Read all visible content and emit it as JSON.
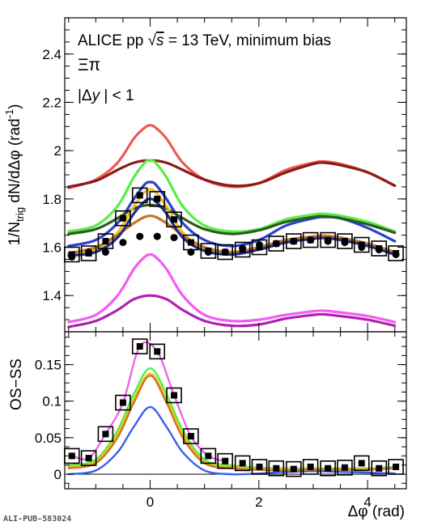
{
  "figure_label": "ALI-PUB-583024",
  "chart_data": [
    {
      "type": "line",
      "panel": "top",
      "ylabel_main": "1/N",
      "ylabel_sub": "trig",
      "ylabel_rest": " dN/dΔφ (rad",
      "ylabel_sup": "-1",
      "ylabel_close": ")",
      "xlim": [
        -1.5708,
        4.7124
      ],
      "ylim": [
        1.25,
        2.55
      ],
      "yticks": [
        1.4,
        1.6,
        1.8,
        2.0,
        2.2,
        2.4
      ],
      "ytick_labels": [
        "1.4",
        "1.6",
        "1.8",
        "2",
        "2.2",
        "2.4"
      ],
      "annotations": {
        "line1": "ALICE  pp ",
        "sqrt": "√",
        "s_var": "s",
        "line1_rest": " = 13 TeV, minimum bias",
        "line2": "Ξπ",
        "line3_a": "|Δ",
        "line3_y": "y",
        "line3_b": " | < 1"
      },
      "series": [
        {
          "color": "#ee5a52",
          "x": [
            -1.5,
            -1.0,
            -0.6,
            -0.3,
            -0.1,
            0.0,
            0.1,
            0.3,
            0.6,
            1.0,
            1.5,
            2.0,
            2.5,
            3.0,
            3.2,
            3.5,
            4.0,
            4.5
          ],
          "y": [
            1.845,
            1.88,
            1.95,
            2.05,
            2.095,
            2.105,
            2.095,
            2.05,
            1.95,
            1.88,
            1.85,
            1.865,
            1.92,
            1.95,
            1.955,
            1.945,
            1.91,
            1.855
          ]
        },
        {
          "color": "#8b1a1a",
          "x": [
            -1.5,
            -1.0,
            -0.6,
            -0.3,
            0.0,
            0.3,
            0.6,
            1.0,
            1.5,
            2.0,
            2.5,
            3.0,
            3.2,
            3.5,
            4.0,
            4.5
          ],
          "y": [
            1.85,
            1.875,
            1.92,
            1.95,
            1.96,
            1.95,
            1.92,
            1.88,
            1.855,
            1.865,
            1.91,
            1.945,
            1.95,
            1.94,
            1.91,
            1.855
          ]
        },
        {
          "color": "#55ee44",
          "x": [
            -1.5,
            -1.0,
            -0.6,
            -0.3,
            -0.1,
            0.0,
            0.1,
            0.3,
            0.6,
            1.0,
            1.5,
            2.0,
            2.5,
            3.0,
            3.2,
            3.5,
            4.0,
            4.5
          ],
          "y": [
            1.665,
            1.69,
            1.77,
            1.89,
            1.95,
            1.96,
            1.95,
            1.89,
            1.77,
            1.69,
            1.665,
            1.675,
            1.715,
            1.735,
            1.738,
            1.73,
            1.705,
            1.665
          ]
        },
        {
          "color": "#2a3fd0",
          "x": [
            -1.5,
            -1.0,
            -0.6,
            -0.3,
            -0.1,
            0.0,
            0.1,
            0.3,
            0.6,
            1.0,
            1.5,
            2.0,
            2.5,
            3.0,
            3.2,
            3.5,
            4.0,
            4.5
          ],
          "y": [
            1.605,
            1.63,
            1.7,
            1.8,
            1.86,
            1.87,
            1.86,
            1.8,
            1.7,
            1.63,
            1.605,
            1.63,
            1.69,
            1.72,
            1.725,
            1.72,
            1.68,
            1.625
          ]
        },
        {
          "color": "#2f5a1f",
          "x": [
            -1.5,
            -1.0,
            -0.6,
            -0.3,
            0.0,
            0.3,
            0.6,
            1.0,
            1.5,
            2.0,
            2.5,
            3.0,
            3.2,
            3.5,
            4.0,
            4.5
          ],
          "y": [
            1.655,
            1.675,
            1.72,
            1.76,
            1.775,
            1.76,
            1.72,
            1.675,
            1.655,
            1.67,
            1.705,
            1.725,
            1.728,
            1.72,
            1.695,
            1.66
          ]
        },
        {
          "color": "#f3c21a",
          "x": [
            -1.5,
            -1.0,
            -0.6,
            -0.3,
            0.0,
            0.3,
            0.6,
            1.0,
            1.5,
            2.0,
            2.5,
            3.0,
            3.2,
            3.5,
            4.0,
            4.5
          ],
          "y": [
            1.57,
            1.59,
            1.66,
            1.77,
            1.84,
            1.77,
            1.66,
            1.59,
            1.575,
            1.595,
            1.625,
            1.64,
            1.642,
            1.635,
            1.61,
            1.575
          ]
        },
        {
          "color": "#c6782a",
          "x": [
            -1.5,
            -1.0,
            -0.6,
            -0.3,
            0.0,
            0.3,
            0.6,
            1.0,
            1.5,
            2.0,
            2.5,
            3.0,
            3.2,
            3.5,
            4.0,
            4.5
          ],
          "y": [
            1.575,
            1.6,
            1.65,
            1.7,
            1.73,
            1.7,
            1.65,
            1.6,
            1.58,
            1.6,
            1.63,
            1.645,
            1.648,
            1.64,
            1.615,
            1.58
          ]
        },
        {
          "color": "#1f2f8f",
          "x": [
            -1.5,
            -1.0,
            -0.6,
            -0.3,
            -0.1,
            0.0,
            0.1,
            0.3,
            0.6,
            1.0,
            1.5,
            2.0,
            2.5,
            3.0,
            3.2,
            3.5,
            4.0,
            4.5
          ],
          "y": [
            1.565,
            1.58,
            1.64,
            1.74,
            1.79,
            1.8,
            1.79,
            1.74,
            1.64,
            1.585,
            1.57,
            1.59,
            1.62,
            1.635,
            1.638,
            1.63,
            1.605,
            1.57
          ]
        },
        {
          "color": "#f35cf0",
          "x": [
            -1.5,
            -1.0,
            -0.6,
            -0.3,
            -0.1,
            0.0,
            0.1,
            0.3,
            0.6,
            1.0,
            1.5,
            2.0,
            2.5,
            3.0,
            3.2,
            3.5,
            4.0,
            4.5
          ],
          "y": [
            1.29,
            1.32,
            1.4,
            1.51,
            1.56,
            1.57,
            1.56,
            1.51,
            1.4,
            1.32,
            1.295,
            1.3,
            1.32,
            1.335,
            1.337,
            1.33,
            1.315,
            1.29
          ]
        },
        {
          "color": "#b020b0",
          "x": [
            -1.5,
            -1.0,
            -0.6,
            -0.3,
            0.0,
            0.3,
            0.6,
            1.0,
            1.5,
            2.0,
            2.5,
            3.0,
            3.2,
            3.5,
            4.0,
            4.5
          ],
          "y": [
            1.27,
            1.295,
            1.34,
            1.385,
            1.4,
            1.385,
            1.34,
            1.295,
            1.275,
            1.28,
            1.305,
            1.32,
            1.322,
            1.315,
            1.3,
            1.275
          ]
        }
      ],
      "points_black": {
        "x": [
          -1.44,
          -1.13,
          -0.82,
          -0.5,
          -0.19,
          0.13,
          0.44,
          0.75,
          1.07,
          1.38,
          1.7,
          2.01,
          2.32,
          2.64,
          2.95,
          3.27,
          3.58,
          3.89,
          4.21,
          4.52
        ],
        "y": [
          1.56,
          1.58,
          1.58,
          1.62,
          1.645,
          1.645,
          1.64,
          1.58,
          1.58,
          1.58,
          1.595,
          1.61,
          1.615,
          1.625,
          1.63,
          1.625,
          1.62,
          1.6,
          1.59,
          1.57
        ]
      },
      "points_boxed": {
        "x": [
          -1.44,
          -1.13,
          -0.82,
          -0.5,
          -0.19,
          0.13,
          0.44,
          0.75,
          1.07,
          1.38,
          1.7,
          2.01,
          2.32,
          2.64,
          2.95,
          3.27,
          3.58,
          3.89,
          4.21,
          4.52
        ],
        "y": [
          1.57,
          1.575,
          1.625,
          1.72,
          1.815,
          1.8,
          1.715,
          1.62,
          1.585,
          1.58,
          1.59,
          1.6,
          1.615,
          1.625,
          1.63,
          1.63,
          1.625,
          1.61,
          1.595,
          1.575
        ]
      }
    },
    {
      "type": "line",
      "panel": "bottom",
      "ylabel": "OS−SS",
      "xlabel": "Δφ (rad)",
      "xlim": [
        -1.5708,
        4.7124
      ],
      "ylim": [
        -0.02,
        0.195
      ],
      "xticks": [
        0,
        2,
        4
      ],
      "xtick_labels": [
        "0",
        "2",
        "4"
      ],
      "yticks": [
        0,
        0.05,
        0.1,
        0.15
      ],
      "ytick_labels": [
        "0",
        "0.05",
        "0.1",
        "0.15"
      ],
      "series": [
        {
          "color": "#ee66ee",
          "x": [
            -1.44,
            -1.13,
            -0.82,
            -0.5,
            -0.19,
            0.13,
            0.44,
            0.75,
            1.07,
            1.38
          ],
          "y": [
            0.025,
            0.022,
            0.055,
            0.098,
            0.175,
            0.168,
            0.108,
            0.052,
            0.025,
            0.018
          ]
        },
        {
          "color": "#3b5cf0",
          "x": [
            -1.5,
            -1.0,
            -0.6,
            -0.3,
            0.0,
            0.3,
            0.6,
            1.0,
            1.5,
            2.0,
            2.5,
            3.0,
            3.5,
            4.0,
            4.5
          ],
          "y": [
            0.0,
            0.005,
            0.03,
            0.065,
            0.092,
            0.065,
            0.03,
            0.005,
            0.0,
            0.001,
            0.003,
            0.004,
            0.003,
            0.002,
            0.001
          ]
        },
        {
          "color": "#55ee44",
          "x": [
            -1.5,
            -1.0,
            -0.6,
            -0.3,
            0.0,
            0.3,
            0.6,
            1.0,
            1.5,
            2.0,
            2.5,
            3.0,
            3.5,
            4.0,
            4.5
          ],
          "y": [
            0.012,
            0.02,
            0.06,
            0.11,
            0.145,
            0.11,
            0.06,
            0.02,
            0.012,
            0.009,
            0.008,
            0.008,
            0.008,
            0.008,
            0.01
          ]
        },
        {
          "color": "#f3c21a",
          "x": [
            -1.5,
            -1.0,
            -0.6,
            -0.3,
            0.0,
            0.3,
            0.6,
            1.0,
            1.5,
            2.0,
            2.5,
            3.0,
            3.5,
            4.0,
            4.5
          ],
          "y": [
            0.01,
            0.017,
            0.055,
            0.103,
            0.138,
            0.103,
            0.055,
            0.017,
            0.01,
            0.008,
            0.007,
            0.007,
            0.007,
            0.007,
            0.009
          ]
        },
        {
          "color": "#c6782a",
          "x": [
            -1.5,
            -1.0,
            -0.6,
            -0.3,
            0.0,
            0.3,
            0.6,
            1.0,
            1.5,
            2.0,
            2.5,
            3.0,
            3.5,
            4.0,
            4.5
          ],
          "y": [
            0.008,
            0.015,
            0.05,
            0.098,
            0.135,
            0.098,
            0.05,
            0.015,
            0.008,
            0.006,
            0.005,
            0.006,
            0.006,
            0.006,
            0.008
          ]
        }
      ],
      "points_boxed": {
        "x": [
          -1.44,
          -1.13,
          -0.82,
          -0.5,
          -0.19,
          0.13,
          0.44,
          0.75,
          1.07,
          1.38,
          1.7,
          2.01,
          2.32,
          2.64,
          2.95,
          3.27,
          3.58,
          3.89,
          4.21,
          4.52
        ],
        "y": [
          0.025,
          0.022,
          0.055,
          0.098,
          0.175,
          0.168,
          0.108,
          0.052,
          0.025,
          0.018,
          0.015,
          0.01,
          0.008,
          0.007,
          0.01,
          0.008,
          0.009,
          0.015,
          0.008,
          0.01
        ]
      }
    }
  ]
}
